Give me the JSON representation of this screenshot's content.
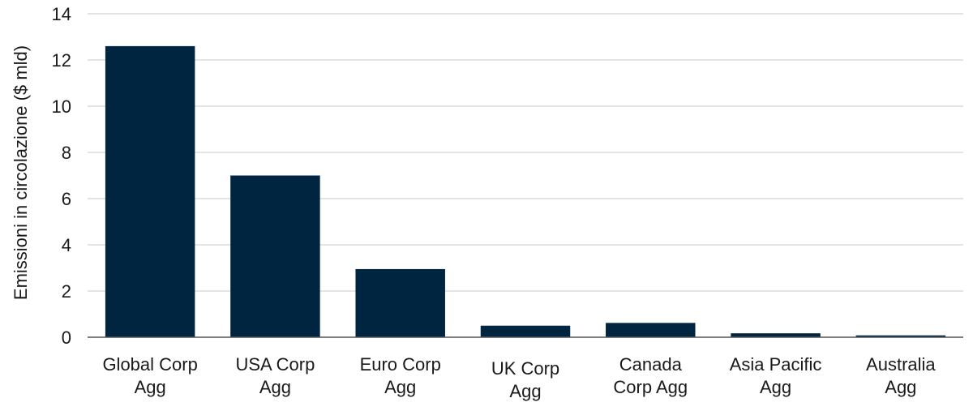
{
  "chart_data": {
    "type": "bar",
    "categories": [
      [
        "Global Corp",
        "Agg"
      ],
      [
        "USA Corp",
        "Agg"
      ],
      [
        "Euro Corp",
        "Agg"
      ],
      [
        "UK Corp",
        "Agg"
      ],
      [
        "Canada",
        "Corp Agg"
      ],
      [
        "Asia Pacific",
        "Agg"
      ],
      [
        "Australia",
        "Agg"
      ]
    ],
    "values": [
      12.6,
      7.0,
      2.95,
      0.5,
      0.62,
      0.17,
      0.08
    ],
    "ylabel": "Emissioni in circolazione ($ mld)",
    "ylim": [
      0,
      14
    ],
    "yticks": [
      0,
      2,
      4,
      6,
      8,
      10,
      12,
      14
    ],
    "grid": true,
    "bar_color": "#002540"
  }
}
